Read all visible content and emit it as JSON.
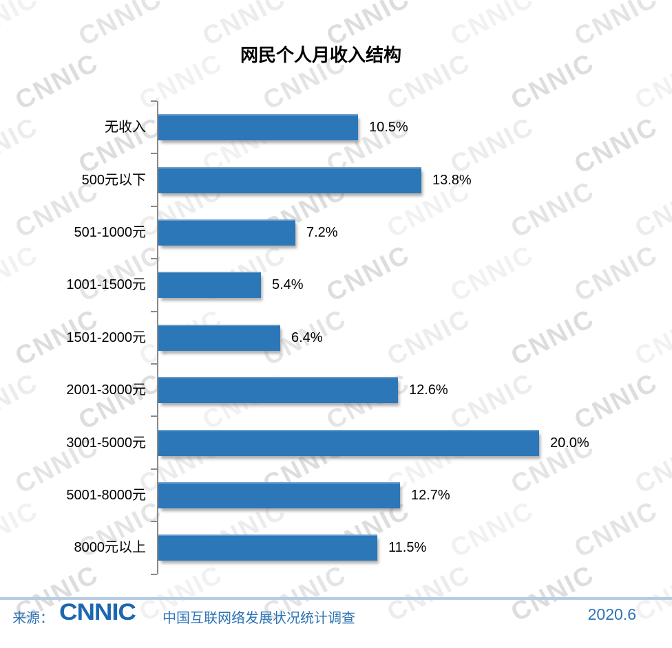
{
  "title": "网民个人月收入结构",
  "chart_data": {
    "type": "bar",
    "orientation": "horizontal",
    "title": "网民个人月收入结构",
    "categories": [
      "无收入",
      "500元以下",
      "501-1000元",
      "1001-1500元",
      "1501-2000元",
      "2001-3000元",
      "3001-5000元",
      "5001-8000元",
      "8000元以上"
    ],
    "values": [
      10.5,
      13.8,
      7.2,
      5.4,
      6.4,
      12.6,
      20.0,
      12.7,
      11.5
    ],
    "value_labels": [
      "10.5%",
      "13.8%",
      "7.2%",
      "5.4%",
      "6.4%",
      "12.6%",
      "20.0%",
      "12.7%",
      "11.5%"
    ],
    "xlabel": "",
    "ylabel": "",
    "xlim": [
      0,
      22
    ],
    "grid": false,
    "legend": false,
    "unit": "%"
  },
  "watermark": {
    "text": "CNNIC"
  },
  "footer": {
    "source_label": "来源：",
    "logo_text": "CNNIC",
    "source_text": "中国互联网络发展状况统计调查",
    "date": "2020.6"
  },
  "colors": {
    "bar": "#2b77b8",
    "axis": "#8a8a8a",
    "title": "#000000",
    "label": "#000000",
    "footer_text": "#2e74b5",
    "footer_line": "#b7cbe3",
    "logo": "#1c67b2"
  }
}
